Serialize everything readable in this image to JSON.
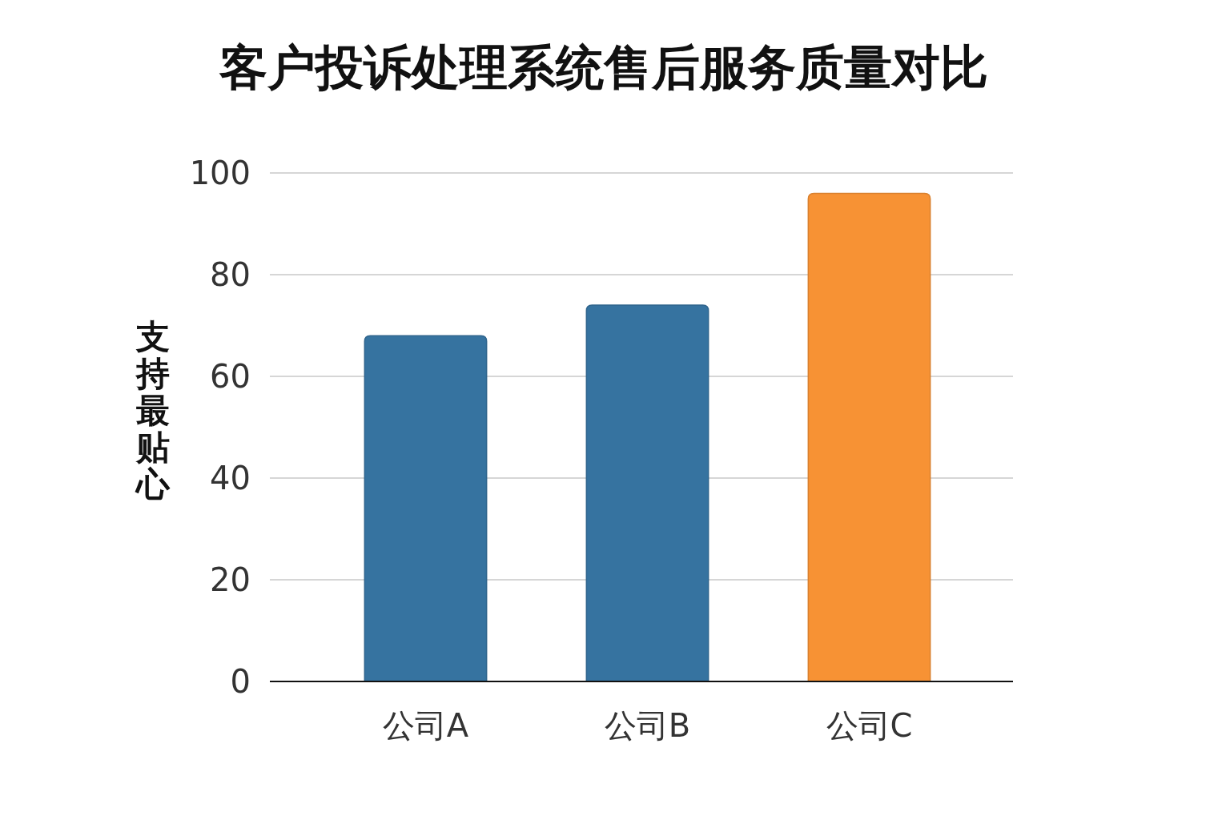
{
  "chart_data": {
    "type": "bar",
    "title": "客户投诉处理系统售后服务质量对比",
    "ylabel": "支持最贴心",
    "categories": [
      "公司A",
      "公司B",
      "公司C"
    ],
    "values": [
      68,
      74,
      96
    ],
    "colors": [
      "#3673a0",
      "#3673a0",
      "#f79234"
    ],
    "ylim": [
      0,
      100
    ],
    "yticks": [
      0,
      20,
      40,
      60,
      80,
      100
    ],
    "grid": "y"
  }
}
